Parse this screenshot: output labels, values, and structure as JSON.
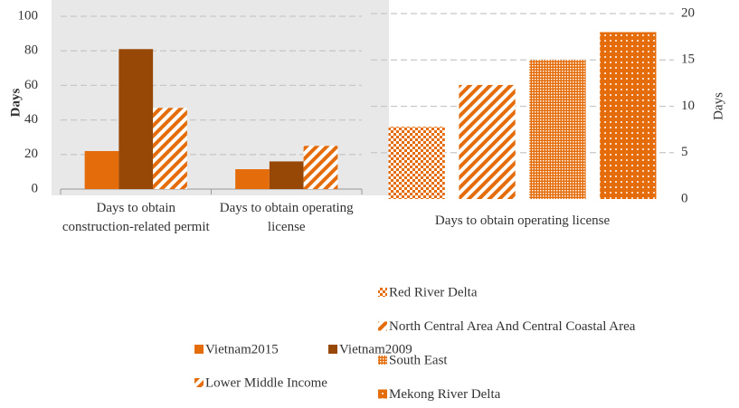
{
  "chart_data": [
    {
      "type": "bar",
      "y_label": "Days",
      "categories": [
        "Days to obtain construction-related permit",
        "Days to obtain operating license"
      ],
      "series": [
        {
          "name": "Vietnam2015",
          "color": "#e46c0a",
          "pattern": "solid",
          "values": [
            22,
            11.5
          ]
        },
        {
          "name": "Vietnam2009",
          "color": "#974706",
          "pattern": "solid",
          "values": [
            81,
            16
          ]
        },
        {
          "name": "Lower Middle Income",
          "color": "#e46c0a",
          "pattern": "diagonal",
          "values": [
            47,
            25
          ]
        }
      ],
      "ylim": [
        0,
        100
      ],
      "yticks": [
        0,
        20,
        40,
        60,
        80,
        100
      ],
      "grid": true,
      "y_axis_side": "left",
      "background": "#e8e8e8",
      "legend": "bottom"
    },
    {
      "type": "bar",
      "y_label": "Days",
      "categories": [
        "Days to obtain operating license"
      ],
      "series": [
        {
          "name": "Red River Delta",
          "color": "#e46c0a",
          "pattern": "checker",
          "values": [
            7.8
          ]
        },
        {
          "name": "North Central Area And Central Coastal Area",
          "color": "#e46c0a",
          "pattern": "diagonal",
          "values": [
            12.3
          ]
        },
        {
          "name": "South East",
          "color": "#e46c0a",
          "pattern": "dots-fine",
          "values": [
            15
          ]
        },
        {
          "name": "Mekong River Delta",
          "color": "#e46c0a",
          "pattern": "dots",
          "values": [
            18
          ]
        }
      ],
      "ylim": [
        0,
        20
      ],
      "yticks": [
        0,
        5,
        10,
        15,
        20
      ],
      "grid": true,
      "y_axis_side": "right",
      "background": "#ffffff",
      "legend": "bottom"
    }
  ]
}
